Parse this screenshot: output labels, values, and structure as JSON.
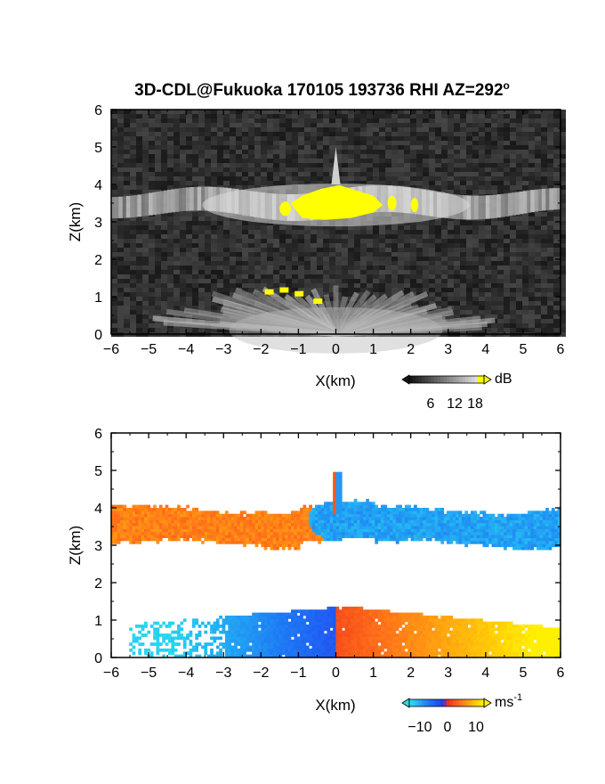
{
  "title_main": "3D-CDL@Fukuoka 170105 193736 RHI AZ=292",
  "title_deg": "o",
  "colors": {
    "bg_dark": "#2a2a2a",
    "yellow": "#ffff00",
    "neg_cyan": "#29c7ee",
    "neg_blue": "#1f3df0",
    "pos_red": "#f0261e",
    "pos_orange": "#ff8a1e",
    "pos_yellow": "#fff000"
  },
  "chart_data": [
    {
      "type": "heatmap",
      "name": "reflectivity",
      "xlabel": "X(km)",
      "ylabel": "Z(km)",
      "xlim": [
        -6,
        6
      ],
      "ylim": [
        0,
        6
      ],
      "xticks": [
        -6,
        -5,
        -4,
        -3,
        -2,
        -1,
        0,
        1,
        2,
        3,
        4,
        5,
        6
      ],
      "yticks": [
        0,
        1,
        2,
        3,
        4,
        5,
        6
      ],
      "colorbar": {
        "unit": "dB",
        "ticks": [
          6,
          12,
          18
        ],
        "range": [
          0,
          20
        ]
      },
      "features": [
        {
          "label": "cloud layer",
          "x": [
            -6,
            6
          ],
          "z": [
            3.0,
            4.0
          ],
          "value_db": 12
        },
        {
          "label": "strong echo core",
          "x": [
            -1.2,
            1.2
          ],
          "z": [
            3.1,
            3.9
          ],
          "value_db": 20
        },
        {
          "label": "near-surface layer",
          "x": [
            -3,
            6
          ],
          "z": [
            0,
            1.3
          ],
          "value_db": 10
        },
        {
          "label": "tip",
          "x": [
            0,
            0
          ],
          "z": [
            4.0,
            5.0
          ],
          "value_db": 14
        }
      ]
    },
    {
      "type": "heatmap",
      "name": "doppler_velocity",
      "xlabel": "X(km)",
      "ylabel": "Z(km)",
      "xlim": [
        -6,
        6
      ],
      "ylim": [
        0,
        6
      ],
      "xticks": [
        -6,
        -5,
        -4,
        -3,
        -2,
        -1,
        0,
        1,
        2,
        3,
        4,
        5,
        6
      ],
      "yticks": [
        0,
        1,
        2,
        3,
        4,
        5,
        6
      ],
      "colorbar": {
        "unit": "ms",
        "unit_sup": "-1",
        "ticks": [
          "−10",
          "0",
          "10"
        ],
        "range": [
          -12,
          12
        ]
      },
      "features": [
        {
          "label": "upper layer west",
          "x": [
            -6,
            -0.4
          ],
          "z": [
            2.9,
            3.9
          ],
          "velocity": 5
        },
        {
          "label": "upper layer east",
          "x": [
            -0.4,
            6
          ],
          "z": [
            2.8,
            4.9
          ],
          "velocity": -8
        },
        {
          "label": "lower layer west",
          "x": [
            -5.5,
            0
          ],
          "z": [
            0,
            1.5
          ],
          "velocity": -10
        },
        {
          "label": "lower layer east",
          "x": [
            0,
            6
          ],
          "z": [
            0,
            1.5
          ],
          "velocity": 8
        }
      ]
    }
  ]
}
